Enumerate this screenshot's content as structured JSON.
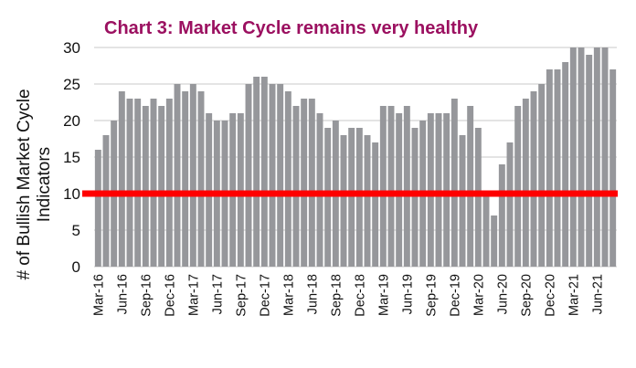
{
  "chart_data": {
    "type": "bar",
    "title": "Chart 3:  Market Cycle remains very healthy",
    "ylabel": "# of Bullish Market Cycle Indicators",
    "xlabel": "",
    "ylim": [
      0,
      30
    ],
    "yticks": [
      "0",
      "5",
      "10",
      "15",
      "20",
      "25",
      "30"
    ],
    "grid": true,
    "threshold": {
      "value": 10,
      "color": "#ff0000"
    },
    "bar_color": "#96979b",
    "start_month": "Mar-16",
    "xtick_labels": [
      "Mar-16",
      "Jun-16",
      "Sep-16",
      "Dec-16",
      "Mar-17",
      "Jun-17",
      "Sep-17",
      "Dec-17",
      "Mar-18",
      "Jun-18",
      "Sep-18",
      "Dec-18",
      "Mar-19",
      "Jun-19",
      "Sep-19",
      "Dec-19",
      "Mar-20",
      "Jun-20",
      "Sep-20",
      "Dec-20",
      "Mar-21",
      "Jun-21"
    ],
    "values": [
      16,
      18,
      20,
      24,
      23,
      23,
      22,
      23,
      22,
      23,
      25,
      24,
      25,
      24,
      21,
      20,
      20,
      21,
      21,
      25,
      26,
      26,
      25,
      25,
      24,
      22,
      23,
      23,
      21,
      19,
      20,
      18,
      19,
      19,
      18,
      17,
      22,
      22,
      21,
      22,
      19,
      20,
      21,
      21,
      21,
      23,
      18,
      22,
      19,
      10,
      7,
      14,
      17,
      22,
      23,
      24,
      25,
      27,
      27,
      28,
      30,
      30,
      29,
      30,
      30,
      27
    ]
  }
}
